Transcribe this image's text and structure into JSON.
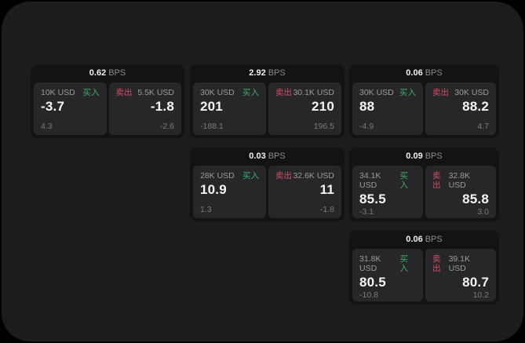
{
  "labels": {
    "bps_unit": "BPS",
    "buy": "买入",
    "sell": "卖出"
  },
  "colors": {
    "window_bg": "#1c1c1e",
    "card_bg": "#131313",
    "panel_bg": "#27272a",
    "buy_green": "#3fae63",
    "sell_red": "#cf4f63",
    "price_white": "#f5f5f5",
    "label_gray": "#9b9b9b"
  },
  "cards": [
    {
      "bps": "0.62",
      "buy": {
        "amount": "10K USD",
        "price": "-3.7",
        "delta": "4.3"
      },
      "sell": {
        "amount": "5.5K USD",
        "price": "-1.8",
        "delta": "-2.6"
      }
    },
    {
      "bps": "2.92",
      "buy": {
        "amount": "30K USD",
        "price": "201",
        "delta": "-188.1"
      },
      "sell": {
        "amount": "30.1K USD",
        "price": "210",
        "delta": "196.5"
      }
    },
    {
      "bps": "0.06",
      "buy": {
        "amount": "30K USD",
        "price": "88",
        "delta": "-4.9"
      },
      "sell": {
        "amount": "30K USD",
        "price": "88.2",
        "delta": "4.7"
      }
    },
    {
      "bps": "0.03",
      "buy": {
        "amount": "28K USD",
        "price": "10.9",
        "delta": "1.3"
      },
      "sell": {
        "amount": "32.6K USD",
        "price": "11",
        "delta": "-1.8"
      }
    },
    {
      "bps": "0.09",
      "buy": {
        "amount": "34.1K USD",
        "price": "85.5",
        "delta": "-3.1"
      },
      "sell": {
        "amount": "32.8K USD",
        "price": "85.8",
        "delta": "3.0"
      }
    },
    {
      "bps": "0.06",
      "buy": {
        "amount": "31.8K USD",
        "price": "80.5",
        "delta": "-10.8"
      },
      "sell": {
        "amount": "39.1K USD",
        "price": "80.7",
        "delta": "10.2"
      }
    }
  ]
}
